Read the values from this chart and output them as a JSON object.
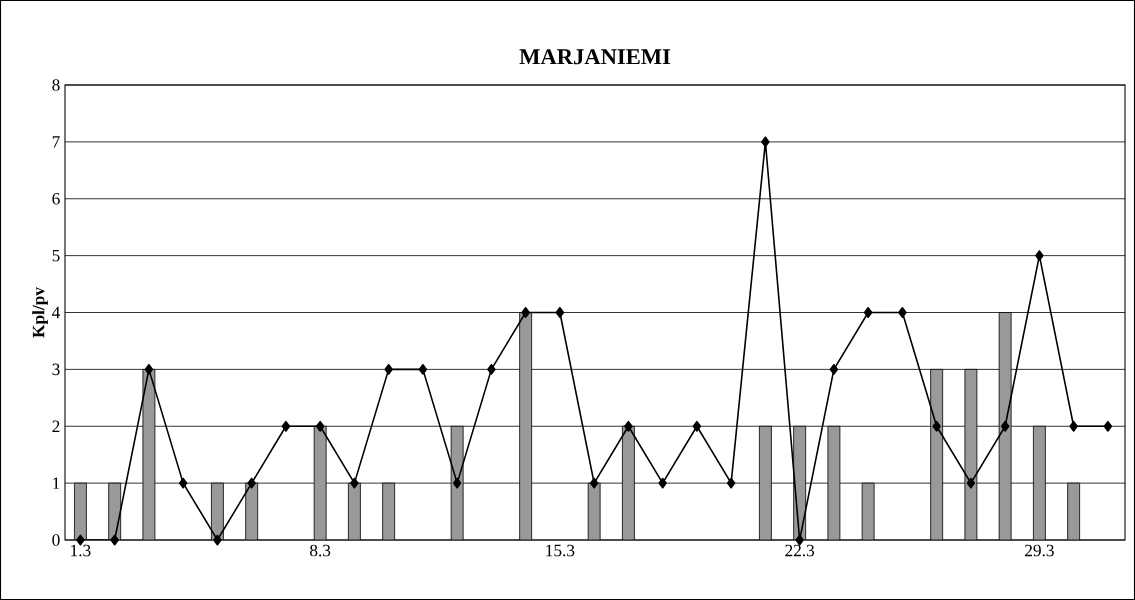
{
  "chart_data": {
    "type": "bar",
    "title": "MARJANIEMI",
    "ylabel": "Kpl/pv",
    "categories": [
      "1.3",
      null,
      null,
      null,
      null,
      null,
      null,
      "8.3",
      null,
      null,
      null,
      null,
      null,
      null,
      "15.3",
      null,
      null,
      null,
      null,
      null,
      null,
      "22.3",
      null,
      null,
      null,
      null,
      null,
      null,
      "29.3",
      null,
      null
    ],
    "series": [
      {
        "color": "#999999",
        "values": [
          1,
          1,
          3,
          null,
          1,
          1,
          null,
          2,
          1,
          1,
          null,
          2,
          null,
          4,
          null,
          1,
          2,
          null,
          null,
          null,
          2,
          2,
          2,
          1,
          null,
          3,
          3,
          4,
          2,
          1,
          null
        ]
      },
      {
        "type": "line",
        "color": "#000000",
        "marker": "diamond",
        "line_style": "solid",
        "values": [
          0,
          0,
          3,
          1,
          0,
          1,
          2,
          2,
          1,
          3,
          3,
          1,
          3,
          4,
          4,
          1,
          2,
          1,
          2,
          1,
          7,
          0,
          3,
          4,
          4,
          2,
          1,
          2,
          5,
          2,
          2
        ]
      }
    ],
    "ylim": [
      0,
      8
    ],
    "yticks": [
      0,
      1,
      2,
      3,
      4,
      5,
      6,
      7,
      8
    ],
    "grid": "y"
  }
}
